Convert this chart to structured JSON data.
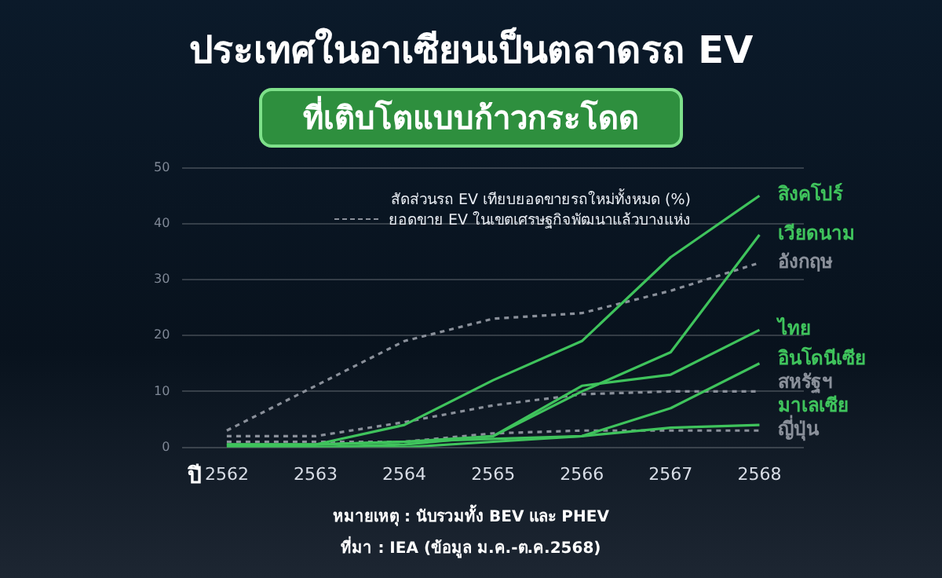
{
  "chart_data": {
    "type": "line",
    "title": "ประเทศในอาเซียนเป็นตลาดรถ EV",
    "subtitle": "ที่เติบโตแบบก้าวกระโดด",
    "xlabel": "ปี",
    "categories": [
      "2562",
      "2563",
      "2564",
      "2565",
      "2566",
      "2567",
      "2568"
    ],
    "ylim": [
      0,
      50
    ],
    "yticks": [
      0,
      10,
      20,
      30,
      40,
      50
    ],
    "grid": "y",
    "legend": false,
    "marker": "none",
    "annotations": [
      "สัดส่วนรถ EV เทียบยอดขายรถใหม่ทั้งหมด (%)",
      "ยอดขาย EV ในเขตเศรษฐกิจพัฒนาแล้วบางแห่ง",
      "หมายเหตุ : นับรวมทั้ง BEV และ PHEV",
      "ที่มา : IEA (ข้อมูล ม.ค.-ต.ค.2568)"
    ],
    "series": [
      {
        "name": "สิงคโปร์",
        "color": "#3fc35c",
        "line_style": "solid",
        "values": [
          0.5,
          0.5,
          4,
          12,
          19,
          34,
          45
        ]
      },
      {
        "name": "เวียดนาม",
        "color": "#3fc35c",
        "line_style": "solid",
        "values": [
          0,
          0,
          0.5,
          2,
          10,
          17,
          38
        ]
      },
      {
        "name": "อังกฤษ",
        "color": "#8a909a",
        "line_style": "dashed",
        "values": [
          3,
          11,
          19,
          23,
          24,
          28,
          33
        ]
      },
      {
        "name": "ไทย",
        "color": "#3fc35c",
        "line_style": "solid",
        "values": [
          0.5,
          0.5,
          1,
          2,
          11,
          13,
          21
        ]
      },
      {
        "name": "อินโดนีเซีย",
        "color": "#3fc35c",
        "line_style": "solid",
        "values": [
          0,
          0,
          0,
          1,
          2,
          7,
          15
        ]
      },
      {
        "name": "สหรัฐฯ",
        "color": "#8a909a",
        "line_style": "dashed",
        "values": [
          2,
          2,
          4.5,
          7.5,
          9.5,
          10,
          10
        ]
      },
      {
        "name": "มาเลเซีย",
        "color": "#3fc35c",
        "line_style": "solid",
        "values": [
          0.5,
          0.5,
          1,
          1.5,
          2,
          3.5,
          4
        ]
      },
      {
        "name": "ญี่ปุ่น",
        "color": "#8a909a",
        "line_style": "dashed",
        "values": [
          1,
          1,
          1,
          2.5,
          3,
          3,
          3
        ]
      }
    ]
  }
}
